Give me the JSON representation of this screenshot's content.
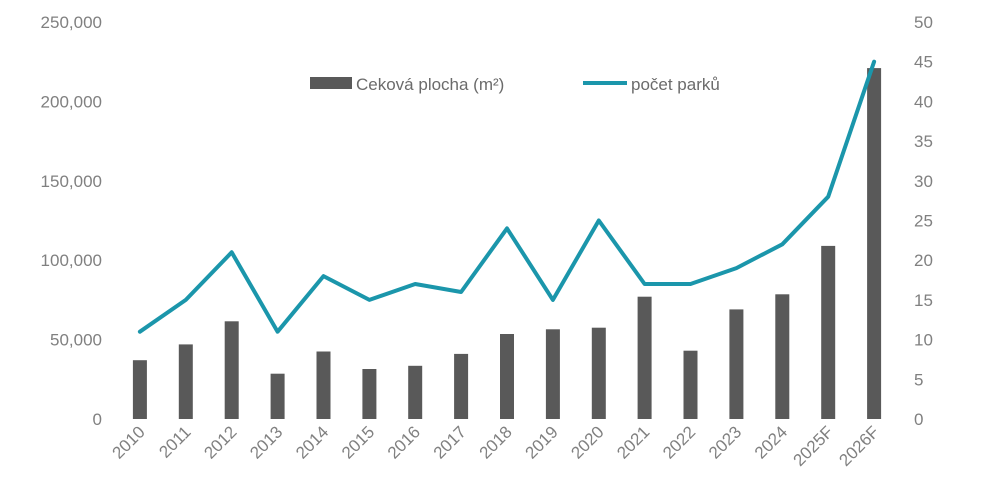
{
  "chart_data": {
    "type": "bar",
    "categories": [
      "2010",
      "2011",
      "2012",
      "2013",
      "2014",
      "2015",
      "2016",
      "2017",
      "2018",
      "2019",
      "2020",
      "2021",
      "2022",
      "2023",
      "2024",
      "2025F",
      "2026F"
    ],
    "series": [
      {
        "name": "Ceková plocha (m²)",
        "type": "bar",
        "axis": "left",
        "color": "#595959",
        "values": [
          37000,
          47000,
          61500,
          28500,
          42500,
          31500,
          33500,
          41000,
          53500,
          56500,
          57500,
          77000,
          43000,
          69000,
          78500,
          109000,
          221000
        ]
      },
      {
        "name": "počet parků",
        "type": "line",
        "axis": "right",
        "color": "#1b96ab",
        "values": [
          11,
          15,
          21,
          11,
          18,
          15,
          17,
          16,
          24,
          15,
          25,
          17,
          17,
          19,
          22,
          28,
          45
        ]
      }
    ],
    "y_left": {
      "min": 0,
      "max": 250000,
      "ticks": [
        "0",
        "50,000",
        "100,000",
        "150,000",
        "200,000",
        "250,000"
      ]
    },
    "y_right": {
      "min": 0,
      "max": 50,
      "ticks": [
        "0",
        "5",
        "10",
        "15",
        "20",
        "25",
        "30",
        "35",
        "40",
        "45",
        "50"
      ]
    },
    "grid": false,
    "legend_position": "top-center",
    "legend": [
      {
        "label": "Ceková plocha (m²)",
        "marker": "bar",
        "color": "#595959"
      },
      {
        "label": "počet parků",
        "marker": "line",
        "color": "#1b96ab"
      }
    ]
  }
}
